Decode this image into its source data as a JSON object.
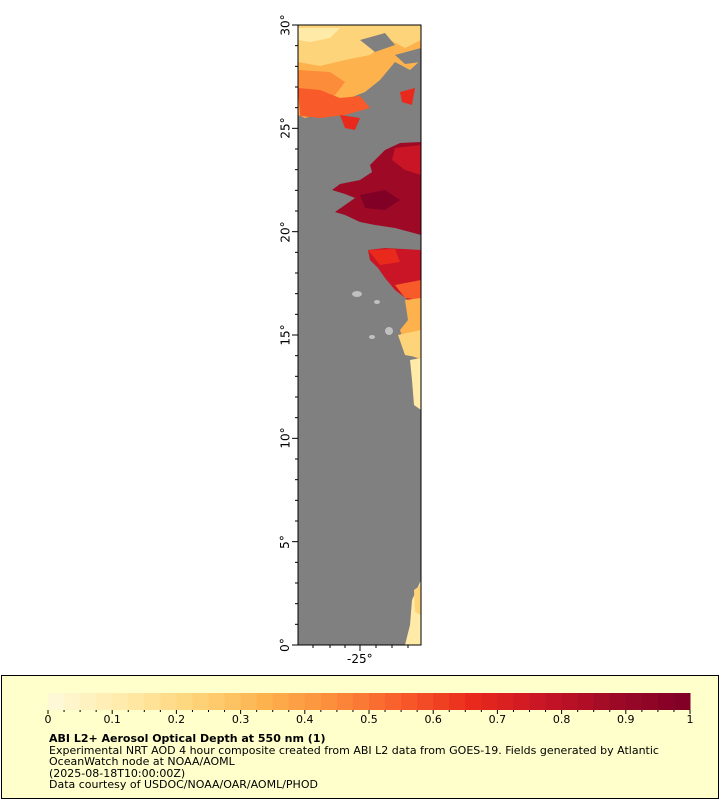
{
  "map": {
    "lat_ticks": [
      "0°",
      "5°",
      "10°",
      "15°",
      "20°",
      "25°",
      "30°"
    ],
    "lon_ticks": [
      "-25°"
    ],
    "colors": {
      "land": "#808080",
      "cloud": "#c0c0c0",
      "background": "#ffffff"
    }
  },
  "legend": {
    "tick_labels": [
      "0",
      "0.1",
      "0.2",
      "0.3",
      "0.4",
      "0.5",
      "0.6",
      "0.7",
      "0.8",
      "0.9",
      "1"
    ],
    "colormap": [
      "#fff8d6",
      "#ffeaa8",
      "#fed47a",
      "#fdb24e",
      "#fc8c3a",
      "#f85a2a",
      "#e8291c",
      "#c91526",
      "#9e0a26",
      "#800026"
    ],
    "title": "ABI L2+ Aerosol Optical Depth at 550 nm (1)",
    "line1": "Experimental NRT AOD 4 hour composite created from ABI L2 data from GOES-19. Fields generated by Atlantic OceanWatch node at NOAA/AOML",
    "line2": "(2025-08-18T10:00:00Z)",
    "line3": "Data courtesy of USDOC/NOAA/OAR/AOML/PHOD",
    "background": "#ffffcc"
  }
}
